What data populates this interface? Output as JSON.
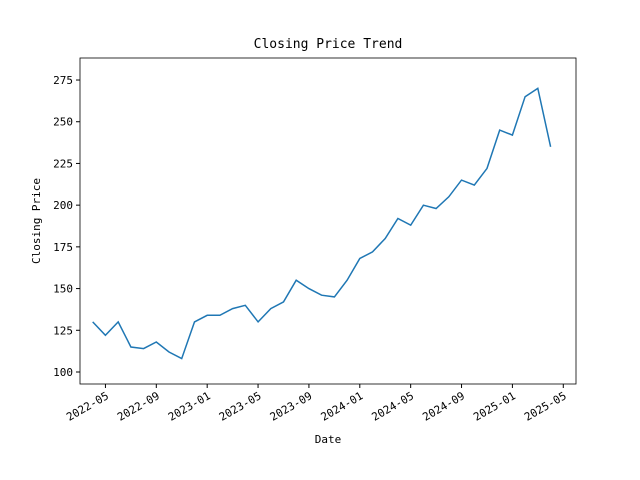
{
  "chart_data": {
    "type": "line",
    "title": "Closing Price Trend",
    "x_label": "Date",
    "y_label": "Closing Price",
    "x": [
      "2022-04",
      "2022-05",
      "2022-06",
      "2022-07",
      "2022-08",
      "2022-09",
      "2022-10",
      "2022-11",
      "2022-12",
      "2023-01",
      "2023-02",
      "2023-03",
      "2023-04",
      "2023-05",
      "2023-06",
      "2023-07",
      "2023-08",
      "2023-09",
      "2023-10",
      "2023-11",
      "2023-12",
      "2024-01",
      "2024-02",
      "2024-03",
      "2024-04",
      "2024-05",
      "2024-06",
      "2024-07",
      "2024-08",
      "2024-09",
      "2024-10",
      "2024-11",
      "2024-12",
      "2025-01",
      "2025-02",
      "2025-03",
      "2025-04"
    ],
    "values": [
      130,
      122,
      130,
      115,
      114,
      118,
      112,
      108,
      130,
      134,
      134,
      138,
      140,
      130,
      138,
      142,
      155,
      150,
      146,
      145,
      155,
      168,
      172,
      180,
      192,
      188,
      200,
      198,
      205,
      215,
      212,
      222,
      245,
      242,
      265,
      270,
      235
    ],
    "color": "#1f77b4",
    "xlim": [
      "2022-03",
      "2025-06"
    ],
    "xticks": [
      "2022-05",
      "2022-09",
      "2023-01",
      "2023-05",
      "2023-09",
      "2024-01",
      "2024-05",
      "2024-09",
      "2025-01",
      "2025-05"
    ],
    "ylim": [
      92.8,
      288.2
    ],
    "yticks": [
      100,
      125,
      150,
      175,
      200,
      225,
      250,
      275
    ]
  }
}
